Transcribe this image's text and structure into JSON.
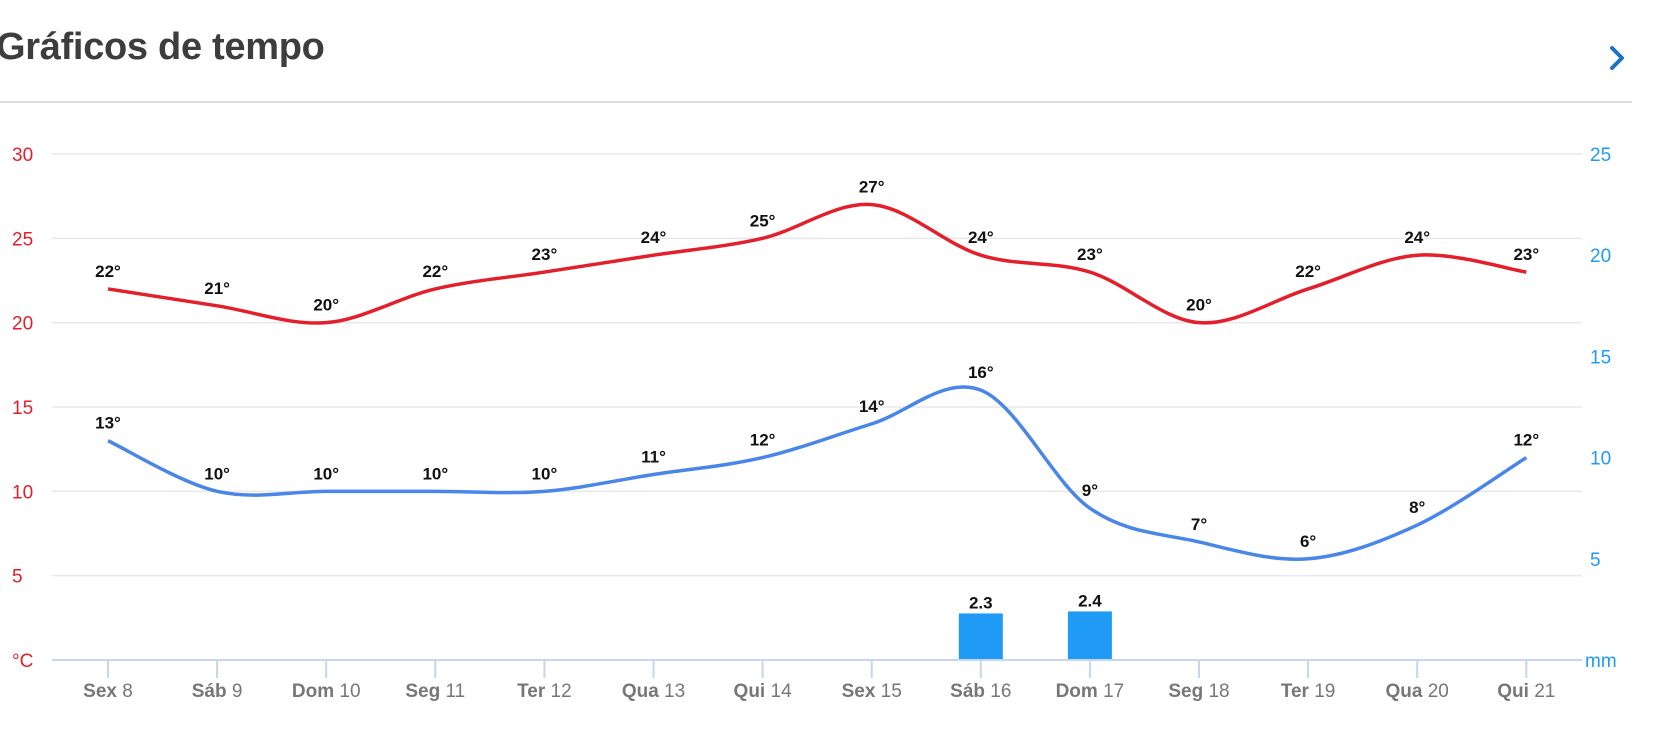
{
  "header": {
    "title": "Gráficos de tempo",
    "more_icon": "chevron-right-icon"
  },
  "colors": {
    "max_temp": "#e21f2b",
    "min_temp": "#4a86e8",
    "precip": "#1f9bf5",
    "left_axis": "#e21f2b",
    "right_axis": "#1f9bf5",
    "tick_label": "#777777",
    "grid": "#e8e8e8",
    "baseline": "#c5d6ee"
  },
  "chart_data": {
    "type": "line",
    "categories": [
      {
        "weekday": "Sex",
        "day": "8"
      },
      {
        "weekday": "Sáb",
        "day": "9"
      },
      {
        "weekday": "Dom",
        "day": "10"
      },
      {
        "weekday": "Seg",
        "day": "11"
      },
      {
        "weekday": "Ter",
        "day": "12"
      },
      {
        "weekday": "Qua",
        "day": "13"
      },
      {
        "weekday": "Qui",
        "day": "14"
      },
      {
        "weekday": "Sex",
        "day": "15"
      },
      {
        "weekday": "Sáb",
        "day": "16"
      },
      {
        "weekday": "Dom",
        "day": "17"
      },
      {
        "weekday": "Seg",
        "day": "18"
      },
      {
        "weekday": "Ter",
        "day": "19"
      },
      {
        "weekday": "Qua",
        "day": "20"
      },
      {
        "weekday": "Qui",
        "day": "21"
      }
    ],
    "series": [
      {
        "key": "max",
        "values": [
          22,
          21,
          20,
          22,
          23,
          24,
          25,
          27,
          24,
          23,
          20,
          22,
          24,
          23
        ],
        "labels": [
          "22°",
          "21°",
          "20°",
          "22°",
          "23°",
          "24°",
          "25°",
          "27°",
          "24°",
          "23°",
          "20°",
          "22°",
          "24°",
          "23°"
        ]
      },
      {
        "key": "min",
        "values": [
          13,
          10,
          10,
          10,
          10,
          11,
          12,
          14,
          16,
          9,
          7,
          6,
          8,
          12
        ],
        "labels": [
          "13°",
          "10°",
          "10°",
          "10°",
          "10°",
          "11°",
          "12°",
          "14°",
          "16°",
          "9°",
          "7°",
          "6°",
          "8°",
          "12°"
        ]
      }
    ],
    "precipitation": {
      "values": [
        null,
        null,
        null,
        null,
        null,
        null,
        null,
        null,
        2.3,
        2.4,
        null,
        null,
        null,
        null
      ],
      "labels": [
        "",
        "",
        "",
        "",
        "",
        "",
        "",
        "",
        "2.3",
        "2.4",
        "",
        "",
        "",
        ""
      ]
    },
    "y_left": {
      "unit": "°C",
      "ticks": [
        "5",
        "10",
        "15",
        "20",
        "25",
        "30"
      ],
      "range": [
        0,
        30
      ]
    },
    "y_right": {
      "unit": "mm",
      "ticks": [
        "5",
        "10",
        "15",
        "20",
        "25"
      ],
      "range": [
        0,
        25
      ]
    },
    "grid": true
  }
}
